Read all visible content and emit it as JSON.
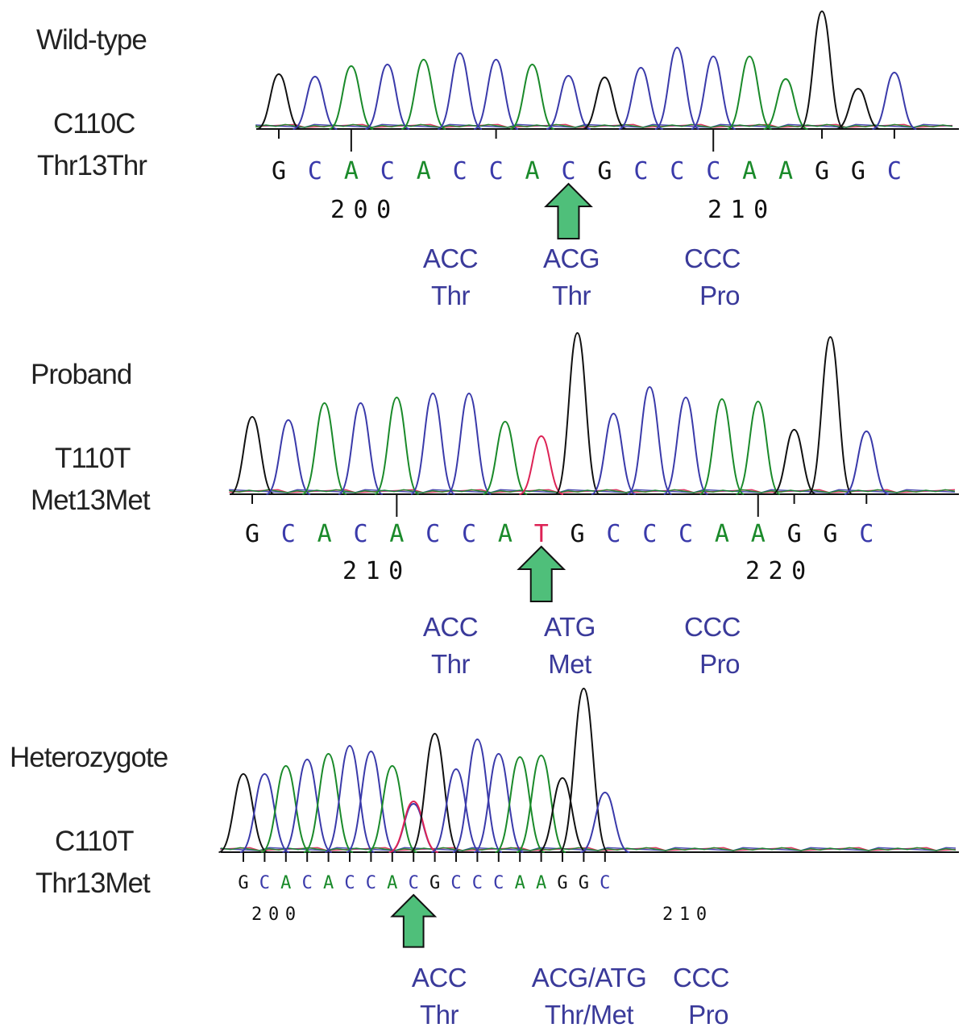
{
  "colors": {
    "A": "#1a8a2a",
    "C": "#3a3aaa",
    "G": "#111111",
    "T": "#dd2255",
    "arrow": "#4fbf7a",
    "baseline": "#111111",
    "codon_text": "#3a3a9a"
  },
  "panels": [
    {
      "name": "wild-type",
      "title": "Wild-type",
      "genotype": "C110C",
      "protein": "Thr13Thr",
      "sequence": [
        "G",
        "C",
        "A",
        "C",
        "A",
        "C",
        "C",
        "A",
        "C",
        "G",
        "C",
        "C",
        "C",
        "A",
        "A",
        "G",
        "G",
        "C"
      ],
      "position_labels": [
        "200",
        "210"
      ],
      "codons": [
        {
          "codon": "ACC",
          "aa": "Thr"
        },
        {
          "codon": "ACG",
          "aa": "Thr"
        },
        {
          "codon": "CCC",
          "aa": "Pro"
        }
      ]
    },
    {
      "name": "proband",
      "title": "Proband",
      "genotype": "T110T",
      "protein": "Met13Met",
      "sequence": [
        "G",
        "C",
        "A",
        "C",
        "A",
        "C",
        "C",
        "A",
        "T",
        "G",
        "C",
        "C",
        "C",
        "A",
        "A",
        "G",
        "G",
        "C"
      ],
      "position_labels": [
        "210",
        "220"
      ],
      "codons": [
        {
          "codon": "ACC",
          "aa": "Thr"
        },
        {
          "codon": "ATG",
          "aa": "Met"
        },
        {
          "codon": "CCC",
          "aa": "Pro"
        }
      ]
    },
    {
      "name": "heterozygote",
      "title": "Heterozygote",
      "genotype": "C110T",
      "protein": "Thr13Met",
      "sequence": [
        "G",
        "C",
        "A",
        "C",
        "A",
        "C",
        "C",
        "A",
        "C",
        "G",
        "C",
        "C",
        "C",
        "A",
        "A",
        "G",
        "G",
        "C"
      ],
      "position_labels": [
        "200",
        "210"
      ],
      "codons": [
        {
          "codon": "ACC",
          "aa": "Thr"
        },
        {
          "codon": "ACG/ATG",
          "aa": "Thr/Met"
        },
        {
          "codon": "CCC",
          "aa": "Pro"
        }
      ]
    }
  ]
}
